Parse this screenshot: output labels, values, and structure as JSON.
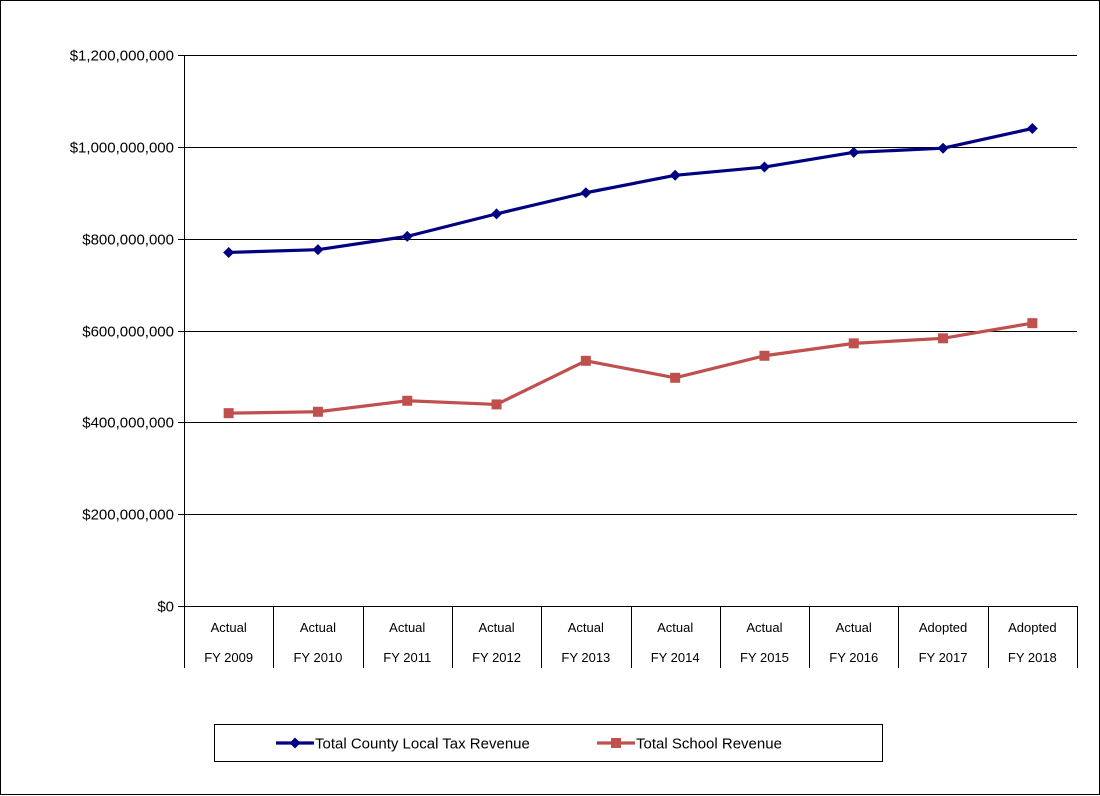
{
  "chart_data": {
    "type": "line",
    "categories": [
      [
        "Actual",
        "FY 2009"
      ],
      [
        "Actual",
        "FY 2010"
      ],
      [
        "Actual",
        "FY 2011"
      ],
      [
        "Actual",
        "FY 2012"
      ],
      [
        "Actual",
        "FY 2013"
      ],
      [
        "Actual",
        "FY 2014"
      ],
      [
        "Actual",
        "FY 2015"
      ],
      [
        "Actual",
        "FY 2016"
      ],
      [
        "Adopted",
        "FY 2017"
      ],
      [
        "Adopted",
        "FY 2018"
      ]
    ],
    "series": [
      {
        "name": "Total County Local Tax Revenue",
        "color": "#000080",
        "marker": "diamond",
        "values": [
          770000000,
          776000000,
          805000000,
          854000000,
          900000000,
          938000000,
          956000000,
          988000000,
          997000000,
          1040000000
        ]
      },
      {
        "name": "Total School Revenue",
        "color": "#C0504D",
        "marker": "square",
        "values": [
          420000000,
          423000000,
          447000000,
          439000000,
          534000000,
          497000000,
          545000000,
          572000000,
          583000000,
          616000000
        ]
      }
    ],
    "y_ticks": [
      "$0",
      "$200,000,000",
      "$400,000,000",
      "$600,000,000",
      "$800,000,000",
      "$1,000,000,000",
      "$1,200,000,000"
    ],
    "ylim": [
      0,
      1200000000
    ],
    "y_tick_step": 200000000,
    "grid": true,
    "legend_position": "bottom"
  }
}
